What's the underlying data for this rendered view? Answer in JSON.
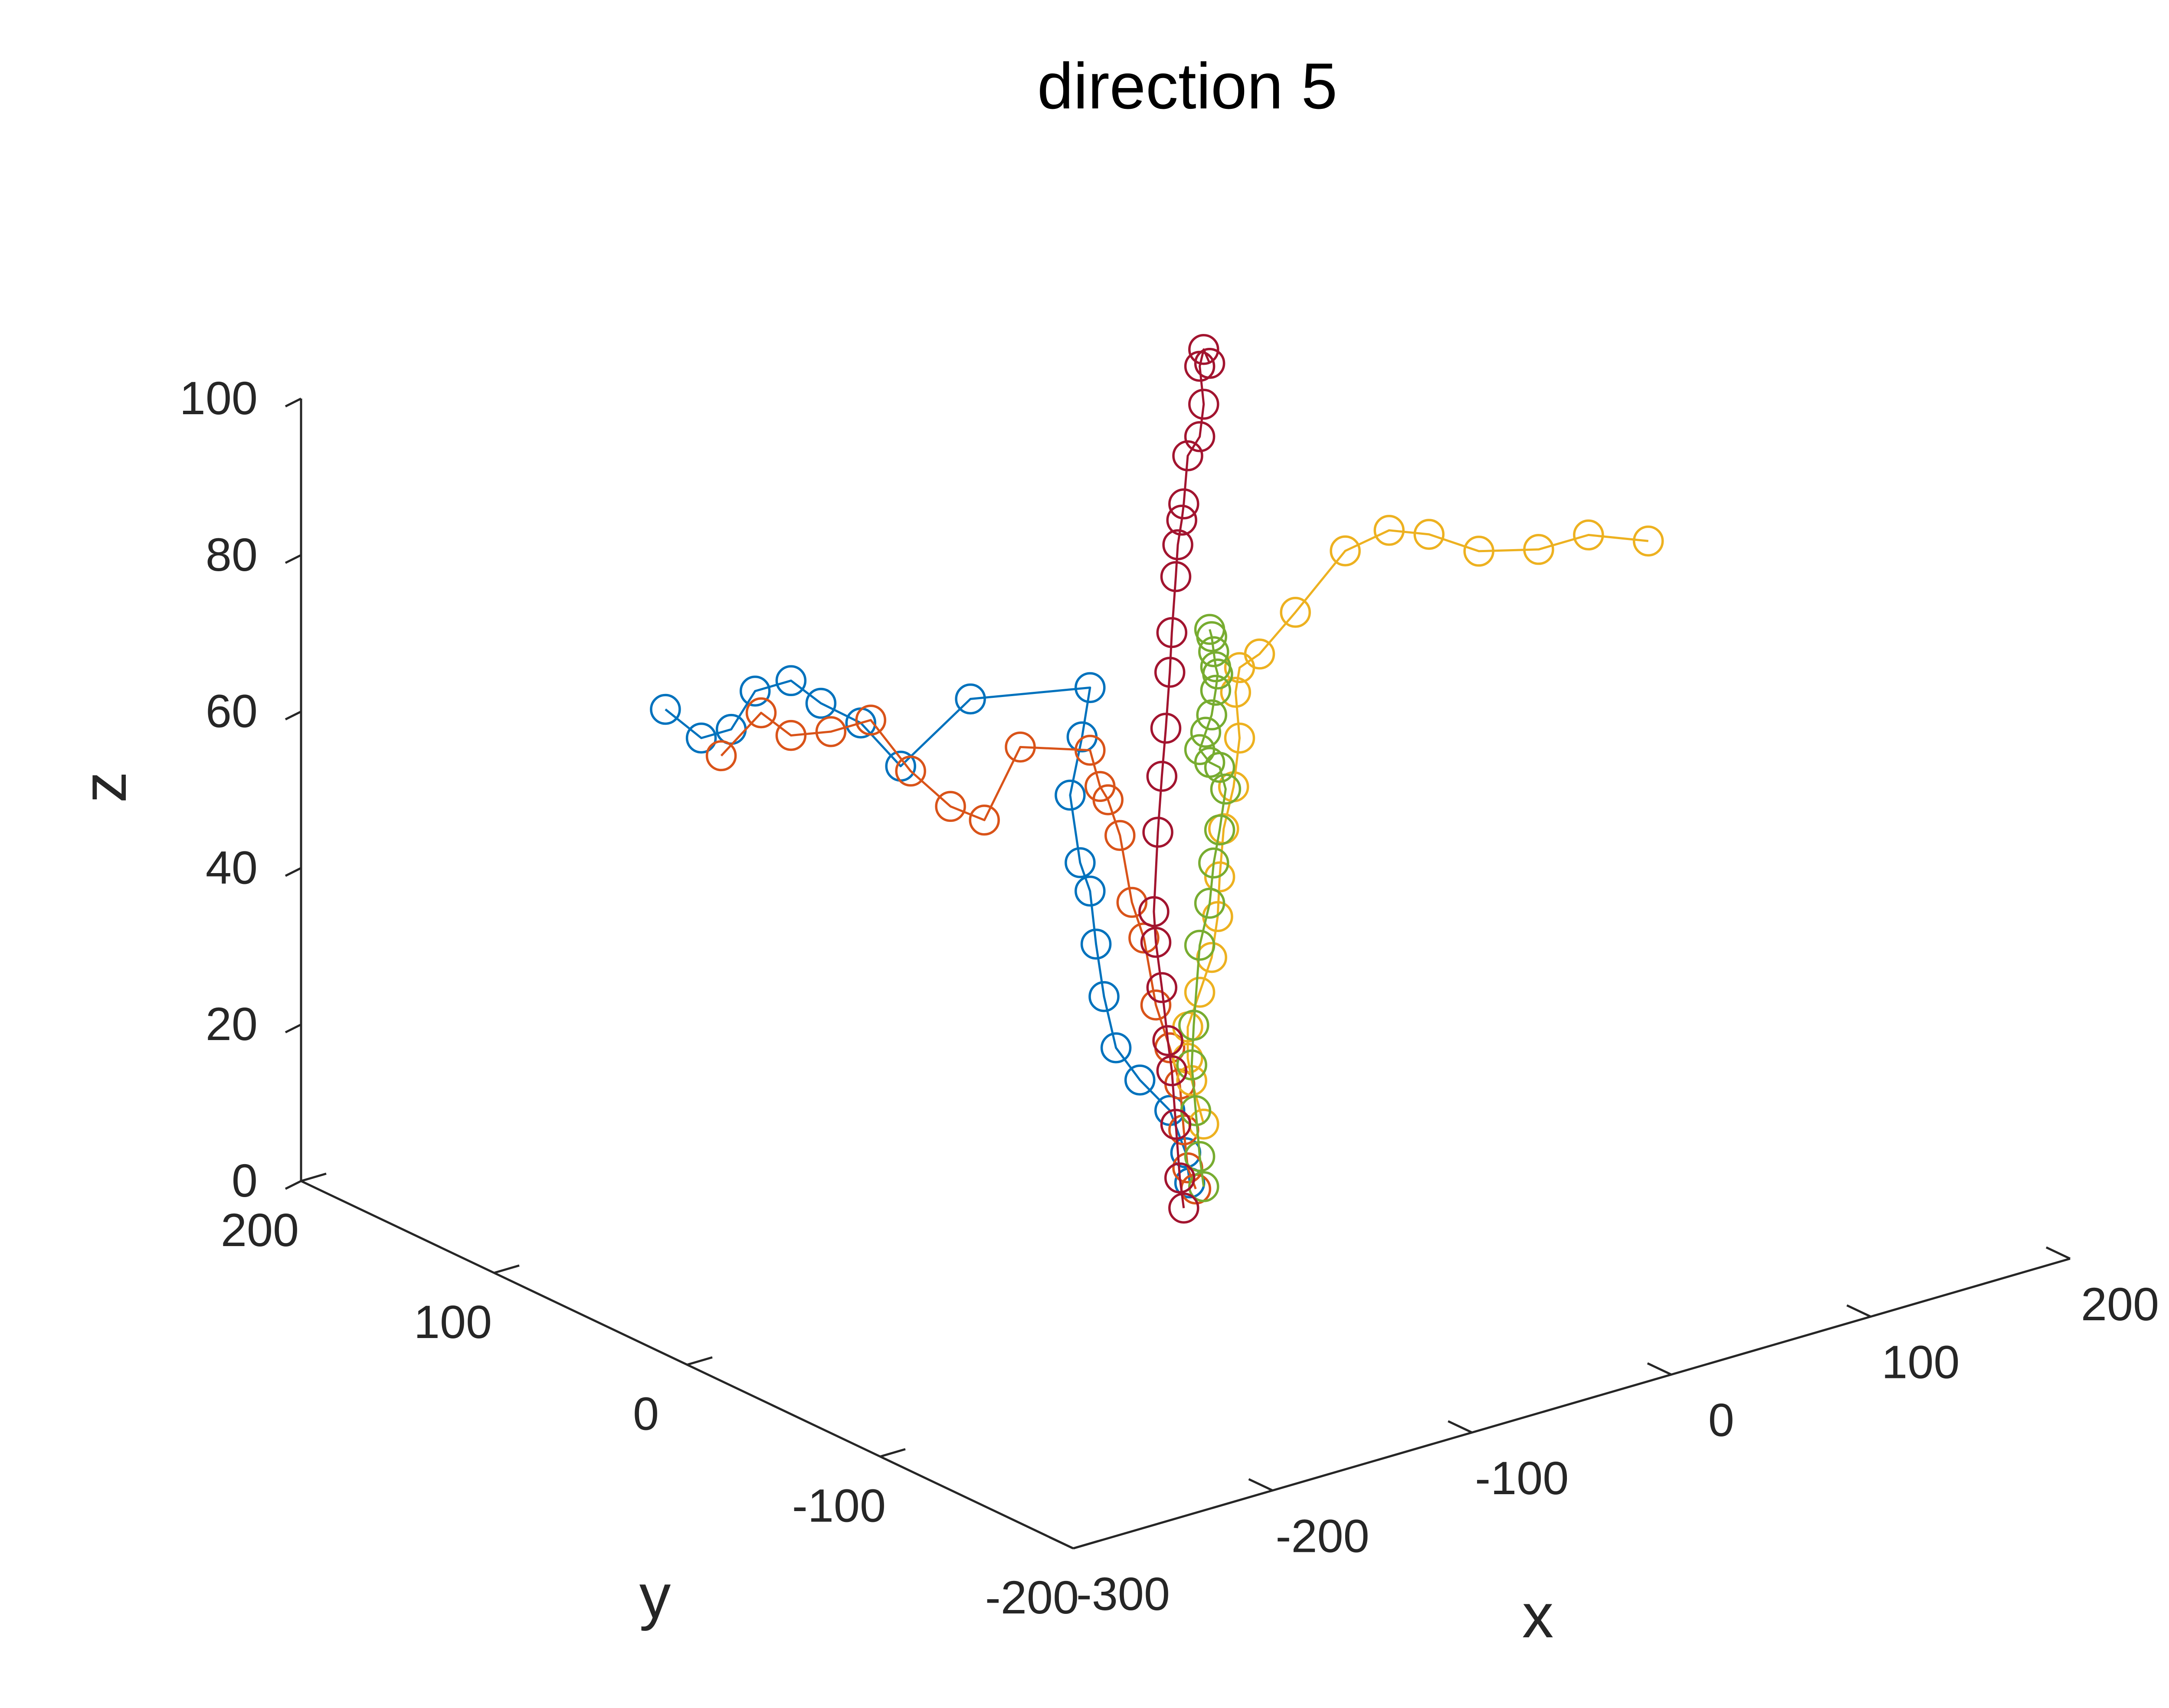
{
  "chart_data": {
    "type": "scatter",
    "title": "direction 5",
    "xlabel": "x",
    "ylabel": "y",
    "zlabel": "z",
    "xlim": [
      -300,
      200
    ],
    "ylim": [
      -200,
      200
    ],
    "zlim": [
      0,
      100
    ],
    "x_ticks": [
      "-300",
      "-200",
      "-100",
      "0",
      "100",
      "200"
    ],
    "y_ticks": [
      "-200",
      "-100",
      "0",
      "100",
      "200"
    ],
    "z_ticks": [
      "0",
      "20",
      "40",
      "60",
      "80",
      "100"
    ],
    "grid": false,
    "legend": "none",
    "series": [
      {
        "color": "#0072BD",
        "points": [
          [
            -45,
            3,
            4
          ],
          [
            -47,
            3,
            8
          ],
          [
            -55,
            3,
            14
          ],
          [
            -70,
            3,
            19
          ],
          [
            -82,
            3,
            24
          ],
          [
            -88,
            3,
            31
          ],
          [
            -92,
            3,
            38
          ],
          [
            -95,
            3,
            45
          ],
          [
            -100,
            3,
            49
          ],
          [
            -105,
            3,
            58
          ],
          [
            -99,
            3,
            65
          ],
          [
            -95,
            3,
            71
          ],
          [
            -155,
            3,
            74
          ],
          [
            -190,
            3,
            68
          ],
          [
            -210,
            3,
            75
          ],
          [
            -230,
            3,
            79
          ],
          [
            -245,
            3,
            83
          ],
          [
            -263,
            3,
            83
          ],
          [
            -275,
            3,
            79
          ],
          [
            -290,
            3,
            79
          ],
          [
            -308,
            3,
            84
          ]
        ]
      },
      {
        "color": "#D95319",
        "points": [
          [
            -42,
            3,
            3
          ],
          [
            -46,
            3,
            6
          ],
          [
            -48,
            3,
            11
          ],
          [
            -50,
            3,
            17
          ],
          [
            -55,
            3,
            22
          ],
          [
            -62,
            3,
            28
          ],
          [
            -68,
            3,
            37
          ],
          [
            -74,
            3,
            42
          ],
          [
            -80,
            3,
            51
          ],
          [
            -86,
            3,
            56
          ],
          [
            -90,
            3,
            58
          ],
          [
            -95,
            3,
            63
          ],
          [
            -130,
            3,
            66
          ],
          [
            -148,
            3,
            58
          ],
          [
            -165,
            3,
            61
          ],
          [
            -185,
            3,
            67
          ],
          [
            -205,
            3,
            75
          ],
          [
            -225,
            3,
            75
          ],
          [
            -245,
            3,
            76
          ],
          [
            -260,
            3,
            80
          ],
          [
            -280,
            3,
            76
          ]
        ]
      },
      {
        "color": "#EDB120",
        "points": [
          [
            -38,
            3,
            11
          ],
          [
            -44,
            3,
            17
          ],
          [
            -46,
            3,
            20
          ],
          [
            -46,
            3,
            24
          ],
          [
            -40,
            3,
            28
          ],
          [
            -34,
            3,
            32
          ],
          [
            -31,
            3,
            37
          ],
          [
            -30,
            3,
            42
          ],
          [
            -28,
            3,
            48
          ],
          [
            -23,
            3,
            53
          ],
          [
            -20,
            3,
            59
          ],
          [
            -22,
            3,
            65
          ],
          [
            -20,
            3,
            68
          ],
          [
            -10,
            3,
            69
          ],
          [
            8,
            3,
            73
          ],
          [
            33,
            3,
            79
          ],
          [
            55,
            3,
            80
          ],
          [
            75,
            3,
            78
          ],
          [
            100,
            3,
            74
          ],
          [
            130,
            3,
            72
          ],
          [
            155,
            3,
            72
          ],
          [
            185,
            3,
            69
          ]
        ]
      },
      {
        "color": "#77AC30",
        "points": [
          [
            -38,
            3,
            3
          ],
          [
            -40,
            3,
            7
          ],
          [
            -42,
            3,
            13
          ],
          [
            -44,
            3,
            19
          ],
          [
            -43,
            3,
            24
          ],
          [
            -40,
            3,
            34
          ],
          [
            -35,
            3,
            39
          ],
          [
            -33,
            3,
            44
          ],
          [
            -30,
            3,
            48
          ],
          [
            -27,
            3,
            53
          ],
          [
            -30,
            3,
            56
          ],
          [
            -35,
            3,
            57
          ],
          [
            -40,
            3,
            59
          ],
          [
            -37,
            3,
            61
          ],
          [
            -34,
            3,
            63
          ],
          [
            -32,
            3,
            66
          ],
          [
            -31,
            3,
            68
          ],
          [
            -32,
            3,
            69
          ],
          [
            -33,
            3,
            71
          ],
          [
            -34,
            3,
            73
          ],
          [
            -35,
            3,
            74
          ]
        ]
      },
      {
        "color": "#A2142F",
        "points": [
          [
            -48,
            3,
            1
          ],
          [
            -50,
            3,
            5
          ],
          [
            -52,
            3,
            12
          ],
          [
            -54,
            3,
            19
          ],
          [
            -56,
            3,
            23
          ],
          [
            -59,
            3,
            30
          ],
          [
            -62,
            3,
            36
          ],
          [
            -63,
            3,
            40
          ],
          [
            -61,
            3,
            50
          ],
          [
            -59,
            3,
            57
          ],
          [
            -57,
            3,
            63
          ],
          [
            -55,
            3,
            70
          ],
          [
            -54,
            3,
            75
          ],
          [
            -52,
            3,
            82
          ],
          [
            -51,
            3,
            86
          ],
          [
            -49,
            3,
            89
          ],
          [
            -48,
            3,
            91
          ],
          [
            -46,
            3,
            97
          ],
          [
            -40,
            3,
            99
          ],
          [
            -38,
            3,
            103
          ],
          [
            -40,
            3,
            108
          ],
          [
            -38,
            3,
            110
          ],
          [
            -35,
            3,
            108
          ]
        ]
      }
    ]
  }
}
